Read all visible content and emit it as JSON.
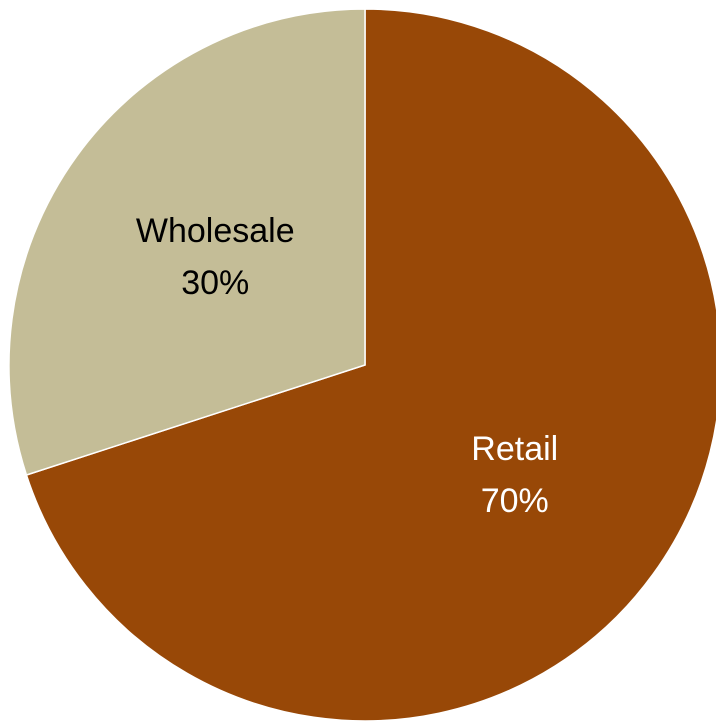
{
  "chart_data": {
    "type": "pie",
    "title": "",
    "slices": [
      {
        "label": "Retail",
        "value": 70,
        "value_label": "70%",
        "color": "#984807",
        "text_color": "#ffffff"
      },
      {
        "label": "Wholesale",
        "value": 30,
        "value_label": "30%",
        "color": "#c4bd97",
        "text_color": "#000000"
      }
    ],
    "start_angle": "12 o'clock",
    "direction": "clockwise",
    "legend": "none",
    "slice_border_color": "#ffffff"
  }
}
